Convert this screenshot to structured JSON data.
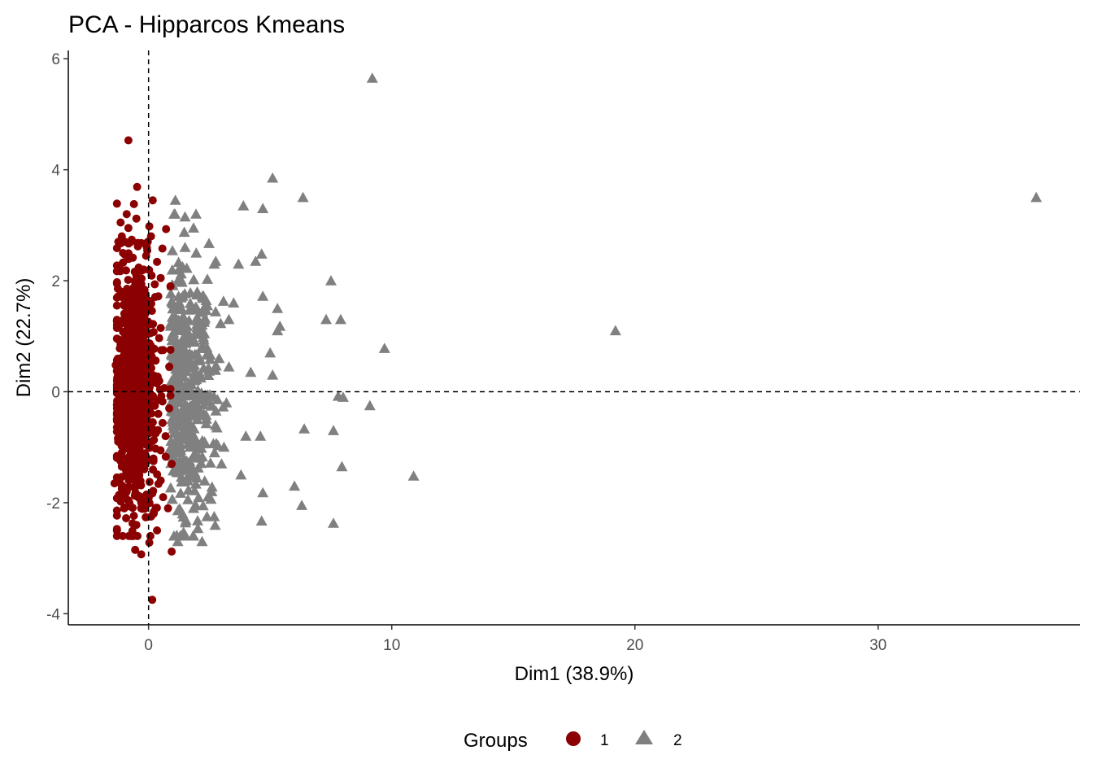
{
  "chart_data": {
    "type": "scatter",
    "title": "PCA - Hipparcos Kmeans",
    "xlabel": "Dim1 (38.9%)",
    "ylabel": "Dim2 (22.7%)",
    "xlim": [
      -3.3,
      38.3
    ],
    "ylim": [
      -4.2,
      6.15
    ],
    "xticks": [
      0,
      10,
      20,
      30
    ],
    "yticks": [
      -4,
      -2,
      0,
      2,
      4,
      6
    ],
    "grid": false,
    "reference_lines": {
      "x": 0,
      "y": 0,
      "style": "dashed"
    },
    "legend": {
      "title": "Groups",
      "position": "bottom",
      "entries": [
        {
          "label": "1",
          "shape": "circle",
          "color": "#8B0000"
        },
        {
          "label": "2",
          "shape": "triangle",
          "color": "#808080"
        }
      ]
    },
    "series": [
      {
        "name": "1",
        "shape": "circle",
        "color": "#8B0000",
        "points": [
          [
            -0.83,
            4.53
          ],
          [
            -0.47,
            3.69
          ],
          [
            0.17,
            3.45
          ],
          [
            -1.3,
            3.39
          ],
          [
            -0.6,
            3.38
          ],
          [
            -0.9,
            3.2
          ],
          [
            -0.5,
            3.12
          ],
          [
            -1.15,
            3.05
          ],
          [
            -0.83,
            2.95
          ],
          [
            0.03,
            2.98
          ],
          [
            0.72,
            2.93
          ],
          [
            -1.1,
            2.8
          ],
          [
            -0.69,
            2.74
          ],
          [
            -0.3,
            2.68
          ],
          [
            0.57,
            2.58
          ],
          [
            -1.05,
            2.5
          ],
          [
            -0.1,
            2.45
          ],
          [
            0.35,
            2.34
          ],
          [
            -1.2,
            2.25
          ],
          [
            -0.2,
            2.2
          ],
          [
            -0.5,
            2.1
          ],
          [
            -1.3,
            1.95
          ],
          [
            -0.9,
            1.8
          ],
          [
            0.4,
            1.72
          ],
          [
            -1.0,
            1.55
          ],
          [
            -0.3,
            1.4
          ],
          [
            -1.2,
            1.2
          ],
          [
            0.5,
            1.15
          ],
          [
            -0.7,
            1.0
          ],
          [
            -1.0,
            0.8
          ],
          [
            0.6,
            0.75
          ],
          [
            -0.4,
            0.6
          ],
          [
            -1.35,
            0.48
          ],
          [
            0.85,
            0.45
          ],
          [
            -0.6,
            0.3
          ],
          [
            -1.1,
            0.1
          ],
          [
            0.9,
            0.05
          ],
          [
            -0.2,
            -0.1
          ],
          [
            -1.3,
            -0.3
          ],
          [
            0.4,
            -0.4
          ],
          [
            -0.7,
            -0.55
          ],
          [
            -1.0,
            -0.75
          ],
          [
            0.7,
            -0.8
          ],
          [
            -1.25,
            -0.9
          ],
          [
            -0.4,
            -1.1
          ],
          [
            0.2,
            -1.25
          ],
          [
            -1.1,
            -1.35
          ],
          [
            -0.6,
            -1.5
          ],
          [
            0.5,
            -1.6
          ],
          [
            -1.4,
            -1.65
          ],
          [
            -0.9,
            -1.8
          ],
          [
            0.6,
            -1.9
          ],
          [
            -0.3,
            -2.0
          ],
          [
            -1.0,
            -2.1
          ],
          [
            0.1,
            -2.25
          ],
          [
            -0.5,
            -2.4
          ],
          [
            0.35,
            -2.5
          ],
          [
            -0.7,
            -2.6
          ],
          [
            0.03,
            -2.72
          ],
          [
            -0.55,
            -2.85
          ],
          [
            0.95,
            -2.88
          ],
          [
            -0.3,
            -2.93
          ],
          [
            0.15,
            -3.75
          ],
          [
            0.8,
            -2.1
          ],
          [
            0.95,
            -1.3
          ],
          [
            0.85,
            -0.3
          ],
          [
            0.9,
            1.9
          ],
          [
            0.5,
            2.05
          ],
          [
            0.1,
            2.8
          ],
          [
            -0.3,
            1.7
          ]
        ],
        "cluster": {
          "description": "dense cloud",
          "x_range": [
            -1.3,
            0.9
          ],
          "y_range": [
            -2.6,
            2.7
          ],
          "count": 900
        }
      },
      {
        "name": "2",
        "shape": "triangle",
        "color": "#808080",
        "points": [
          [
            36.5,
            3.5
          ],
          [
            19.2,
            1.1
          ],
          [
            10.9,
            -1.52
          ],
          [
            9.2,
            5.65
          ],
          [
            9.1,
            -0.25
          ],
          [
            9.7,
            0.78
          ],
          [
            7.9,
            1.3
          ],
          [
            7.6,
            -0.7
          ],
          [
            7.6,
            -2.37
          ],
          [
            7.5,
            2.0
          ],
          [
            7.3,
            1.3
          ],
          [
            8.0,
            -0.1
          ],
          [
            7.95,
            -1.35
          ],
          [
            7.8,
            -0.08
          ],
          [
            6.4,
            -0.67
          ],
          [
            6.35,
            3.5
          ],
          [
            6.3,
            -2.05
          ],
          [
            6.0,
            -1.7
          ],
          [
            5.1,
            3.85
          ],
          [
            4.7,
            3.3
          ],
          [
            4.65,
            2.48
          ],
          [
            4.7,
            1.72
          ],
          [
            4.7,
            -1.82
          ],
          [
            4.65,
            -2.33
          ],
          [
            5.3,
            1.1
          ],
          [
            5.4,
            1.18
          ],
          [
            5.3,
            1.5
          ],
          [
            5.0,
            0.7
          ],
          [
            5.1,
            0.3
          ],
          [
            3.9,
            3.35
          ],
          [
            3.7,
            2.3
          ],
          [
            4.4,
            2.35
          ],
          [
            4.0,
            -0.8
          ],
          [
            4.6,
            -0.8
          ],
          [
            3.3,
            1.3
          ],
          [
            2.7,
            2.3
          ],
          [
            2.6,
            -1.8
          ],
          [
            2.2,
            -2.7
          ],
          [
            1.85,
            2.95
          ],
          [
            1.5,
            2.6
          ],
          [
            1.1,
            3.45
          ],
          [
            1.5,
            3.15
          ],
          [
            1.8,
            1.5
          ],
          [
            1.2,
            -2.7
          ],
          [
            2.0,
            -0.5
          ],
          [
            1.3,
            0.8
          ],
          [
            1.7,
            -1.0
          ],
          [
            1.4,
            -2.2
          ],
          [
            1.2,
            2.0
          ],
          [
            2.2,
            1.2
          ],
          [
            3.0,
            -1.3
          ],
          [
            1.9,
            0.2
          ],
          [
            2.5,
            0.4
          ],
          [
            1.6,
            -1.4
          ],
          [
            1.1,
            1.35
          ],
          [
            2.9,
            0.6
          ],
          [
            3.2,
            -0.2
          ],
          [
            1.4,
            2.25
          ],
          [
            2.4,
            -2.25
          ],
          [
            3.5,
            1.6
          ],
          [
            3.1,
            -1.0
          ],
          [
            4.2,
            0.35
          ],
          [
            3.8,
            -1.5
          ],
          [
            1.3,
            -2.6
          ],
          [
            2.7,
            -2.25
          ]
        ],
        "cluster": {
          "description": "spread cloud",
          "x_range": [
            0.9,
            3.5
          ],
          "y_range": [
            -2.6,
            3.2
          ],
          "count": 400
        }
      }
    ]
  }
}
